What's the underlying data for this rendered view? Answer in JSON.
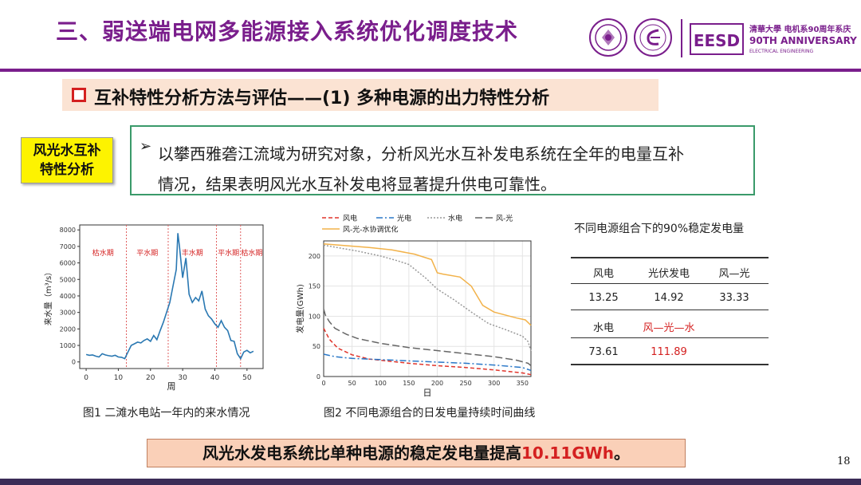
{
  "slide": {
    "title": "三、弱送端电网多能源接入系统优化调度技术",
    "subheader": "互补特性分析方法与评估——(1) 多种电源的出力特性分析",
    "tag": [
      "风光水互补",
      "特性分析"
    ],
    "description": [
      "以攀西雅砻江流域为研究对象，分析风光水互补发电系统在全年的电量互补",
      "情况，结果表明风光水互补发电将显著提升供电可靠性。"
    ],
    "description_bullet": "➢",
    "conclusion_prefix": "风光水发电系统比单种电源的稳定发电量提高",
    "conclusion_value": "10.11GWh",
    "conclusion_suffix": "。",
    "page_number": "18"
  },
  "logos": {
    "text_line1": "清華大學 电机系90周年系庆",
    "text_line2": "90TH ANNIVERSARY",
    "text_line3": "ELECTRICAL ENGINEERING",
    "emblem_text": "EESD"
  },
  "colors": {
    "title": "#7a1e8c",
    "accent_red": "#d42020",
    "box_green": "#3a9a6a",
    "tag_yellow": "#fdf300"
  },
  "figures": {
    "fig1_caption": "图1 二滩水电站一年内的来水情况",
    "fig2_caption": "图2 不同电源组合的日发电量持续时间曲线"
  },
  "table": {
    "title": "不同电源组合下的90%稳定发电量",
    "row1_headers": [
      "风电",
      "光伏发电",
      "风—光"
    ],
    "row1_values": [
      "13.25",
      "14.92",
      "33.33"
    ],
    "row2_headers": [
      "水电",
      "风—光—水"
    ],
    "row2_values": [
      "73.61",
      "111.89"
    ]
  },
  "chart_data": [
    {
      "type": "line",
      "xlabel": "周",
      "ylabel": "来水量（m³/s）",
      "xlim": [
        -2,
        55
      ],
      "ylim": [
        -400,
        8300
      ],
      "xticks": [
        0,
        10,
        20,
        30,
        40,
        50
      ],
      "yticks": [
        0,
        1000,
        2000,
        3000,
        4000,
        5000,
        6000,
        7000,
        8000
      ],
      "periods": [
        {
          "label": "枯水期",
          "from": -2,
          "to": 12.5
        },
        {
          "label": "平水期",
          "from": 12.5,
          "to": 25.5
        },
        {
          "label": "丰水期",
          "from": 25.5,
          "to": 40.5
        },
        {
          "label": "平水期",
          "from": 40.5,
          "to": 48
        },
        {
          "label": "枯水期",
          "from": 48,
          "to": 55
        }
      ],
      "series": [
        {
          "color": "#2a78b2",
          "x": [
            0,
            1,
            2,
            3,
            4,
            5,
            6,
            7,
            8,
            9,
            10,
            11,
            12,
            13,
            14,
            15,
            16,
            17,
            18,
            19,
            20,
            21,
            22,
            23,
            24,
            25,
            26,
            27,
            28,
            28.5,
            29,
            30,
            31,
            32,
            33,
            34,
            35,
            36,
            37,
            38,
            39,
            40,
            41,
            42,
            43,
            44,
            45,
            46,
            47,
            48,
            49,
            50,
            51,
            52
          ],
          "y": [
            450,
            400,
            420,
            350,
            300,
            500,
            420,
            380,
            350,
            400,
            300,
            280,
            200,
            600,
            1000,
            1100,
            1200,
            1150,
            1300,
            1400,
            1250,
            1600,
            1350,
            1900,
            2400,
            3000,
            3600,
            4600,
            5600,
            7800,
            7000,
            5100,
            6300,
            4100,
            3600,
            3900,
            3700,
            4300,
            3200,
            2800,
            2600,
            2300,
            2100,
            2500,
            2100,
            1900,
            1300,
            1250,
            500,
            200,
            600,
            700,
            550,
            650
          ]
        }
      ]
    },
    {
      "type": "line",
      "xlabel": "日",
      "ylabel": "发电量(GWh)",
      "xlim": [
        0,
        365
      ],
      "ylim": [
        0,
        225
      ],
      "xticks": [
        0,
        50,
        100,
        150,
        200,
        250,
        300,
        350
      ],
      "yticks": [
        0,
        50,
        100,
        150,
        200
      ],
      "legend": [
        "风电",
        "光电",
        "水电",
        "风-光",
        "风-光-水协调优化"
      ],
      "series": [
        {
          "name": "风电",
          "color": "#e0352b",
          "dash": "5,3",
          "x": [
            0,
            10,
            25,
            50,
            80,
            100,
            150,
            200,
            250,
            300,
            350,
            365
          ],
          "y": [
            80,
            62,
            47,
            36,
            29,
            27,
            22,
            18,
            15,
            11,
            6,
            3
          ]
        },
        {
          "name": "光电",
          "color": "#2a78c8",
          "dash": "8,3,2,3",
          "x": [
            0,
            20,
            50,
            100,
            150,
            200,
            250,
            300,
            350,
            365
          ],
          "y": [
            37,
            33,
            30,
            28,
            26,
            24,
            22,
            19,
            15,
            10
          ]
        },
        {
          "name": "水电",
          "color": "#999999",
          "dash": "2,2",
          "x": [
            0,
            30,
            60,
            100,
            130,
            150,
            180,
            200,
            230,
            260,
            290,
            320,
            350,
            360,
            365
          ],
          "y": [
            218,
            213,
            208,
            200,
            192,
            186,
            163,
            145,
            127,
            107,
            88,
            78,
            67,
            58,
            42
          ]
        },
        {
          "name": "风-光",
          "color": "#666666",
          "dash": "9,4",
          "x": [
            0,
            3,
            10,
            20,
            40,
            60,
            80,
            100,
            150,
            200,
            250,
            300,
            340,
            360,
            365
          ],
          "y": [
            112,
            102,
            91,
            80,
            70,
            63,
            59,
            55,
            48,
            43,
            38,
            33,
            27,
            22,
            18
          ]
        },
        {
          "name": "风-光-水协调优化",
          "color": "#f2b24a",
          "dash": "",
          "x": [
            0,
            40,
            80,
            120,
            160,
            190,
            200,
            210,
            240,
            260,
            280,
            300,
            340,
            355,
            365
          ],
          "y": [
            220,
            217,
            214,
            210,
            203,
            194,
            172,
            170,
            165,
            150,
            118,
            107,
            97,
            94,
            85
          ]
        }
      ]
    }
  ]
}
